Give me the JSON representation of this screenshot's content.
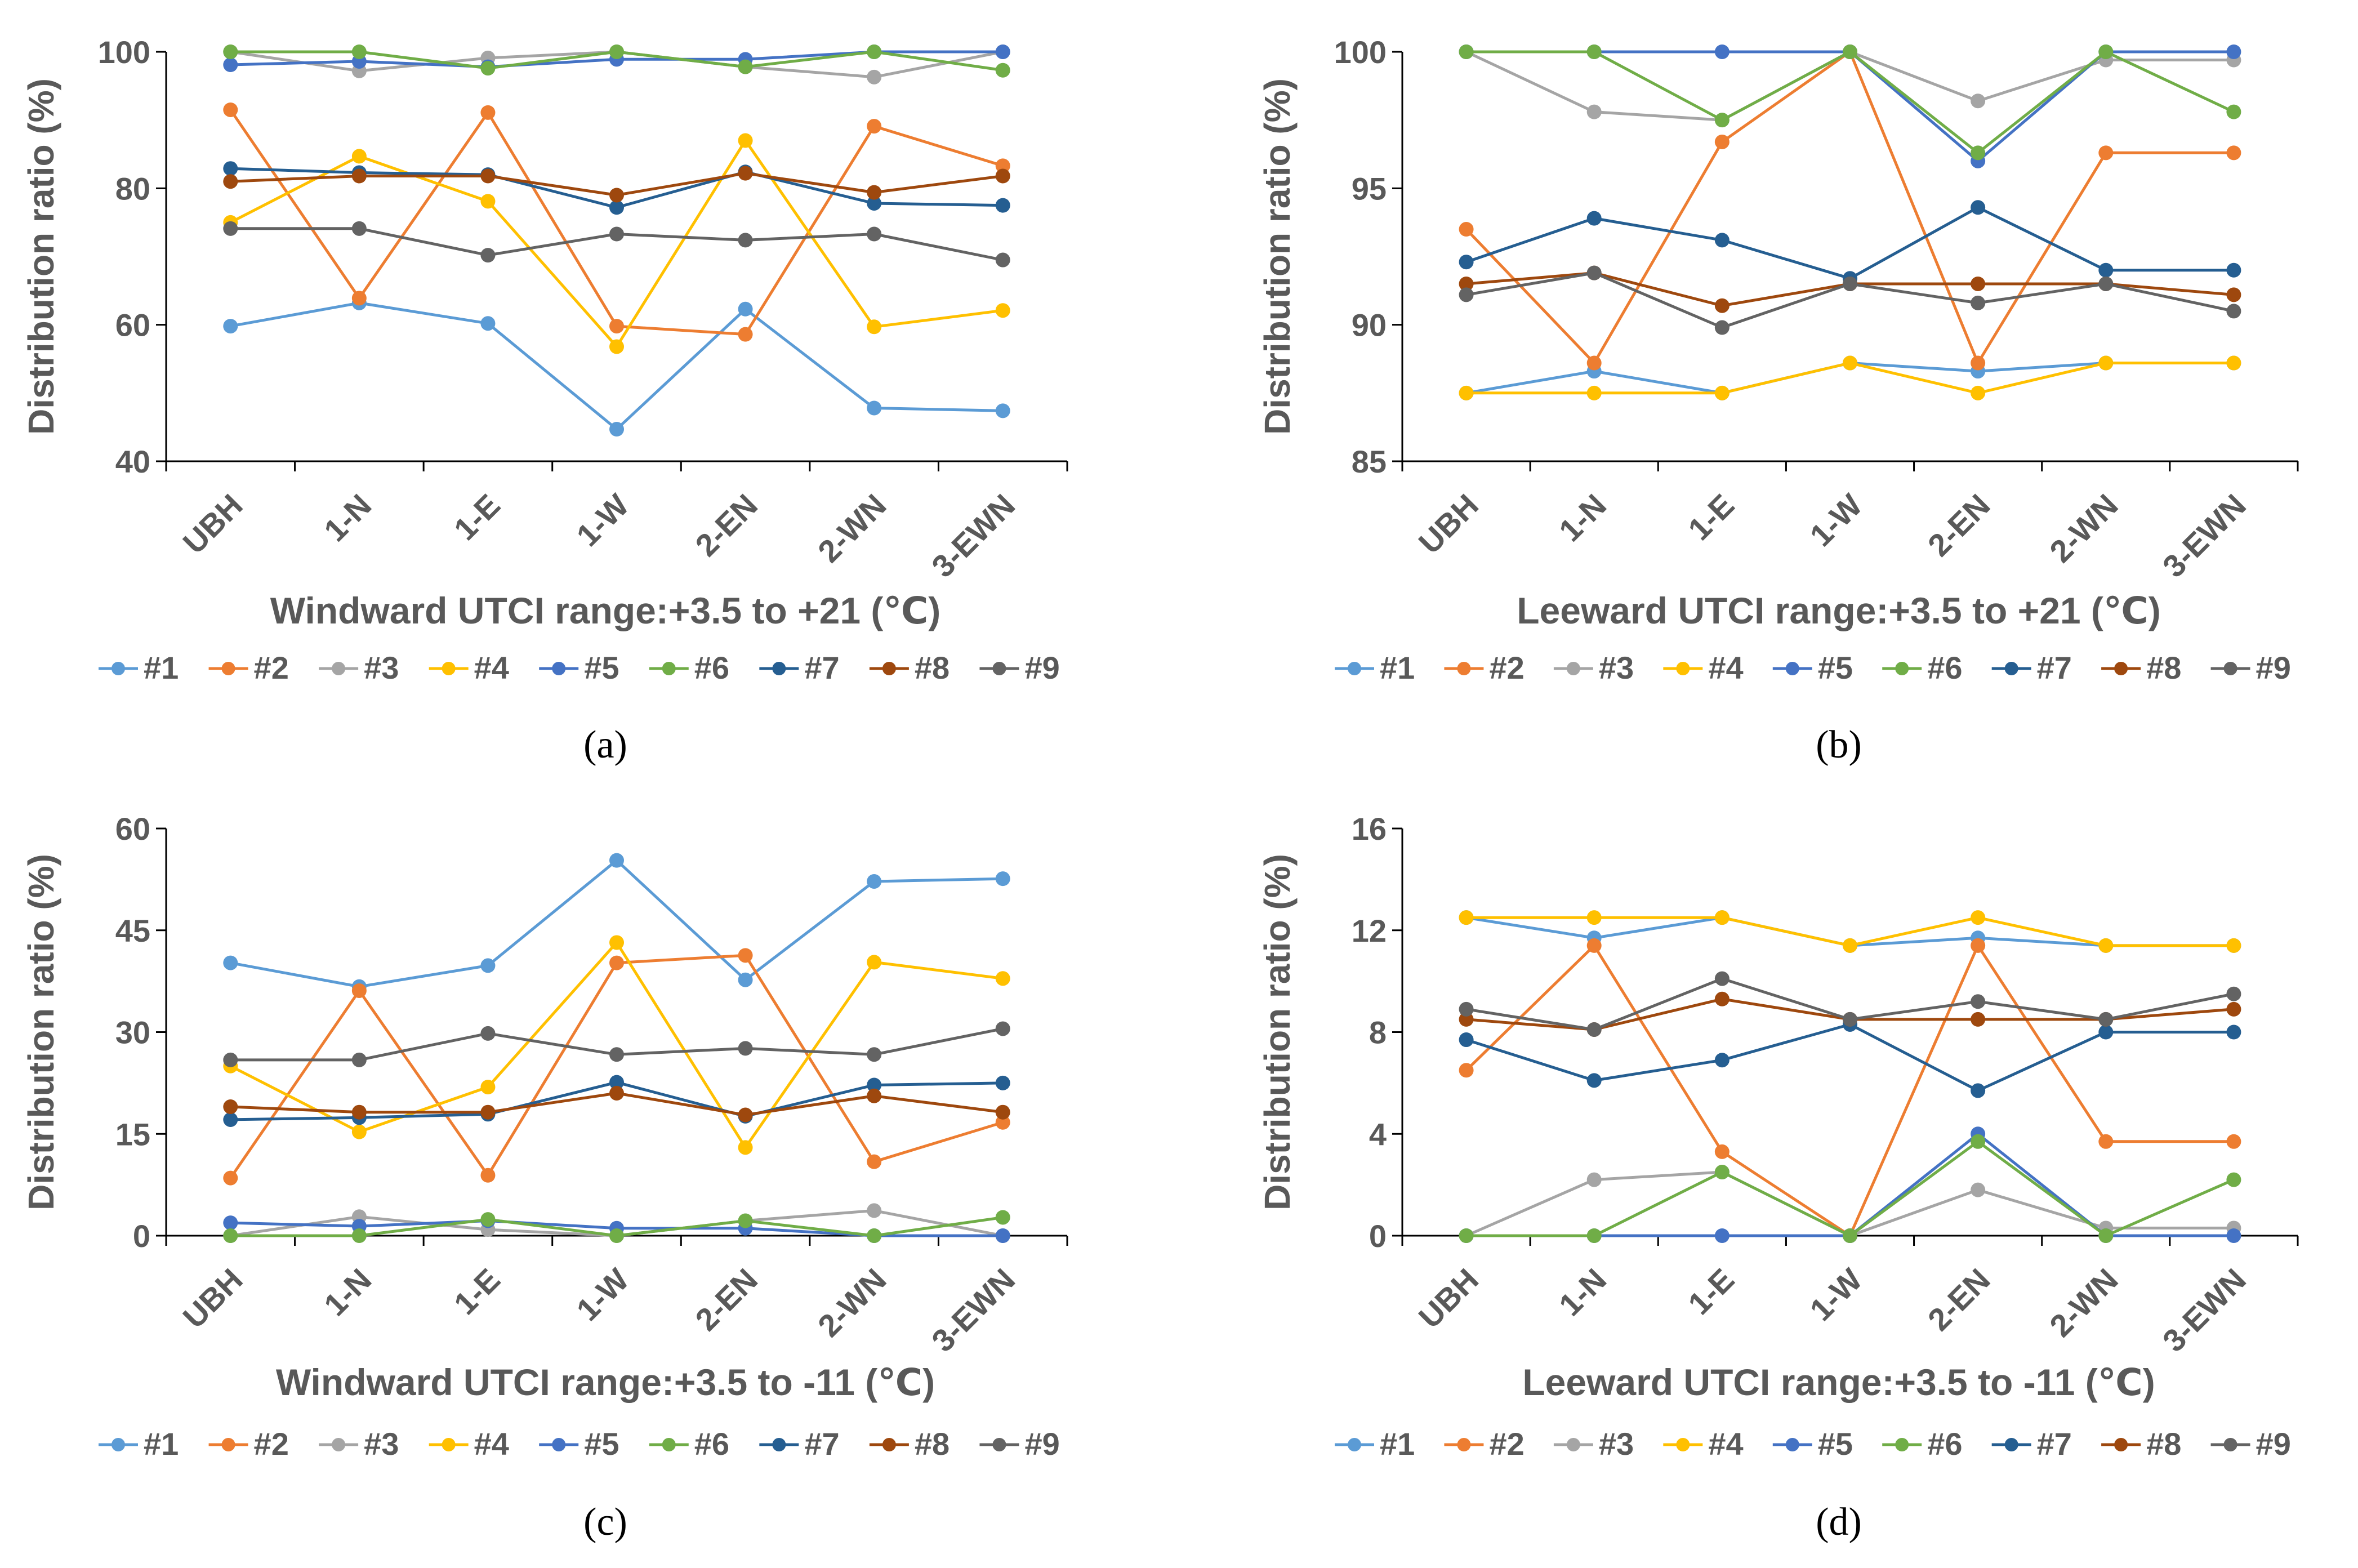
{
  "colors": {
    "#1": "#5B9BD5",
    "#2": "#ED7D31",
    "#3": "#A5A5A5",
    "#4": "#FFC000",
    "#5": "#4472C4",
    "#6": "#70AD47",
    "#7": "#255E91",
    "#8": "#9E480E",
    "#9": "#636363"
  },
  "legend_entries": [
    "#1",
    "#2",
    "#3",
    "#4",
    "#5",
    "#6",
    "#7",
    "#8",
    "#9"
  ],
  "chart_data": [
    {
      "type": "line",
      "panel_label": "(a)",
      "title": "Windward UTCI range:+3.5 to +21 (℃)",
      "xlabel": "Windward UTCI range:+3.5 to +21 (℃)",
      "ylabel": "Distribution ratio (%)",
      "categories": [
        "UBH",
        "1-N",
        "1-E",
        "1-W",
        "2-EN",
        "2-WN",
        "3-EWN"
      ],
      "ylim": [
        40,
        100
      ],
      "yticks": [
        40,
        60,
        80,
        100
      ],
      "ytick_labels": [
        "40",
        "60",
        "80",
        "100"
      ],
      "legend_position": "bottom",
      "series": [
        {
          "name": "#1",
          "values": [
            59.8,
            63.2,
            60.2,
            44.7,
            62.3,
            47.8,
            47.4
          ]
        },
        {
          "name": "#2",
          "values": [
            91.5,
            63.9,
            91.1,
            59.8,
            58.6,
            89.1,
            83.3
          ]
        },
        {
          "name": "#3",
          "values": [
            100,
            97.2,
            99.1,
            100,
            97.8,
            96.3,
            100
          ]
        },
        {
          "name": "#4",
          "values": [
            75.0,
            84.7,
            78.1,
            56.8,
            87.0,
            59.7,
            62.1
          ]
        },
        {
          "name": "#5",
          "values": [
            98.1,
            98.6,
            97.8,
            98.9,
            98.9,
            100,
            100
          ]
        },
        {
          "name": "#6",
          "values": [
            100,
            100,
            97.6,
            100,
            97.8,
            100,
            97.3
          ]
        },
        {
          "name": "#7",
          "values": [
            82.9,
            82.3,
            82.0,
            77.2,
            82.4,
            77.8,
            77.5
          ]
        },
        {
          "name": "#8",
          "values": [
            81.0,
            81.8,
            81.8,
            79.0,
            82.2,
            79.4,
            81.8
          ]
        },
        {
          "name": "#9",
          "values": [
            74.1,
            74.1,
            70.2,
            73.3,
            72.4,
            73.3,
            69.5
          ]
        }
      ]
    },
    {
      "type": "line",
      "panel_label": "(b)",
      "title": "Leeward UTCI range:+3.5 to +21 (℃)",
      "xlabel": "Leeward UTCI range:+3.5 to +21 (℃)",
      "ylabel": "Distribution ratio (%)",
      "categories": [
        "UBH",
        "1-N",
        "1-E",
        "1-W",
        "2-EN",
        "2-WN",
        "3-EWN"
      ],
      "ylim": [
        85,
        100
      ],
      "yticks": [
        85,
        90,
        95,
        100
      ],
      "ytick_labels": [
        "85",
        "90",
        "95",
        "100"
      ],
      "legend_position": "bottom",
      "series": [
        {
          "name": "#1",
          "values": [
            87.5,
            88.3,
            87.5,
            88.6,
            88.3,
            88.6,
            88.6
          ]
        },
        {
          "name": "#2",
          "values": [
            93.5,
            88.6,
            96.7,
            100,
            88.6,
            96.3,
            96.3
          ]
        },
        {
          "name": "#3",
          "values": [
            100,
            97.8,
            97.5,
            100,
            98.2,
            99.7,
            99.7
          ]
        },
        {
          "name": "#4",
          "values": [
            87.5,
            87.5,
            87.5,
            88.6,
            87.5,
            88.6,
            88.6
          ]
        },
        {
          "name": "#5",
          "values": [
            100,
            100,
            100,
            100,
            96.0,
            100,
            100
          ]
        },
        {
          "name": "#6",
          "values": [
            100,
            100,
            97.5,
            100,
            96.3,
            100,
            97.8
          ]
        },
        {
          "name": "#7",
          "values": [
            92.3,
            93.9,
            93.1,
            91.7,
            94.3,
            92.0,
            92.0
          ]
        },
        {
          "name": "#8",
          "values": [
            91.5,
            91.9,
            90.7,
            91.5,
            91.5,
            91.5,
            91.1
          ]
        },
        {
          "name": "#9",
          "values": [
            91.1,
            91.9,
            89.9,
            91.5,
            90.8,
            91.5,
            90.5
          ]
        }
      ]
    },
    {
      "type": "line",
      "panel_label": "(c)",
      "title": "Windward UTCI range:+3.5 to -11 (℃)",
      "xlabel": "Windward UTCI range:+3.5 to -11 (℃)",
      "ylabel": "Distribution ratio (%)",
      "categories": [
        "UBH",
        "1-N",
        "1-E",
        "1-W",
        "2-EN",
        "2-WN",
        "3-EWN"
      ],
      "ylim": [
        0,
        60
      ],
      "yticks": [
        0,
        15,
        30,
        45,
        60
      ],
      "ytick_labels": [
        "0",
        "15",
        "30",
        "45",
        "60"
      ],
      "legend_position": "bottom",
      "series": [
        {
          "name": "#1",
          "values": [
            40.2,
            36.7,
            39.8,
            55.3,
            37.7,
            52.2,
            52.6
          ]
        },
        {
          "name": "#2",
          "values": [
            8.5,
            36.1,
            8.9,
            40.2,
            41.3,
            10.9,
            16.7
          ]
        },
        {
          "name": "#3",
          "values": [
            0,
            2.8,
            0.9,
            0,
            2.2,
            3.7,
            0
          ]
        },
        {
          "name": "#4",
          "values": [
            25.0,
            15.3,
            21.9,
            43.2,
            13.0,
            40.3,
            37.9
          ]
        },
        {
          "name": "#5",
          "values": [
            1.9,
            1.4,
            2.2,
            1.1,
            1.1,
            0,
            0
          ]
        },
        {
          "name": "#6",
          "values": [
            0,
            0,
            2.4,
            0,
            2.2,
            0,
            2.7
          ]
        },
        {
          "name": "#7",
          "values": [
            17.1,
            17.4,
            17.9,
            22.6,
            17.6,
            22.2,
            22.5
          ]
        },
        {
          "name": "#8",
          "values": [
            19.0,
            18.2,
            18.2,
            21.0,
            17.8,
            20.6,
            18.2
          ]
        },
        {
          "name": "#9",
          "values": [
            25.9,
            25.9,
            29.8,
            26.7,
            27.6,
            26.7,
            30.5
          ]
        }
      ]
    },
    {
      "type": "line",
      "panel_label": "(d)",
      "title": "Leeward UTCI range:+3.5 to -11 (℃)",
      "xlabel": "Leeward UTCI range:+3.5 to -11 (℃)",
      "ylabel": "Distribution ratio (%)",
      "categories": [
        "UBH",
        "1-N",
        "1-E",
        "1-W",
        "2-EN",
        "2-WN",
        "3-EWN"
      ],
      "ylim": [
        0,
        16
      ],
      "yticks": [
        0,
        4,
        8,
        12,
        16
      ],
      "ytick_labels": [
        "0",
        "4",
        "8",
        "12",
        "16"
      ],
      "legend_position": "bottom",
      "series": [
        {
          "name": "#1",
          "values": [
            12.5,
            11.7,
            12.5,
            11.4,
            11.7,
            11.4,
            11.4
          ]
        },
        {
          "name": "#2",
          "values": [
            6.5,
            11.4,
            3.3,
            0,
            11.4,
            3.7,
            3.7
          ]
        },
        {
          "name": "#3",
          "values": [
            0,
            2.2,
            2.5,
            0,
            1.8,
            0.3,
            0.3
          ]
        },
        {
          "name": "#4",
          "values": [
            12.5,
            12.5,
            12.5,
            11.4,
            12.5,
            11.4,
            11.4
          ]
        },
        {
          "name": "#5",
          "values": [
            0,
            0,
            0,
            0,
            4.0,
            0,
            0
          ]
        },
        {
          "name": "#6",
          "values": [
            0,
            0,
            2.5,
            0,
            3.7,
            0,
            2.2
          ]
        },
        {
          "name": "#7",
          "values": [
            7.7,
            6.1,
            6.9,
            8.3,
            5.7,
            8.0,
            8.0
          ]
        },
        {
          "name": "#8",
          "values": [
            8.5,
            8.1,
            9.3,
            8.5,
            8.5,
            8.5,
            8.9
          ]
        },
        {
          "name": "#9",
          "values": [
            8.9,
            8.1,
            10.1,
            8.5,
            9.2,
            8.5,
            9.5
          ]
        }
      ]
    }
  ]
}
